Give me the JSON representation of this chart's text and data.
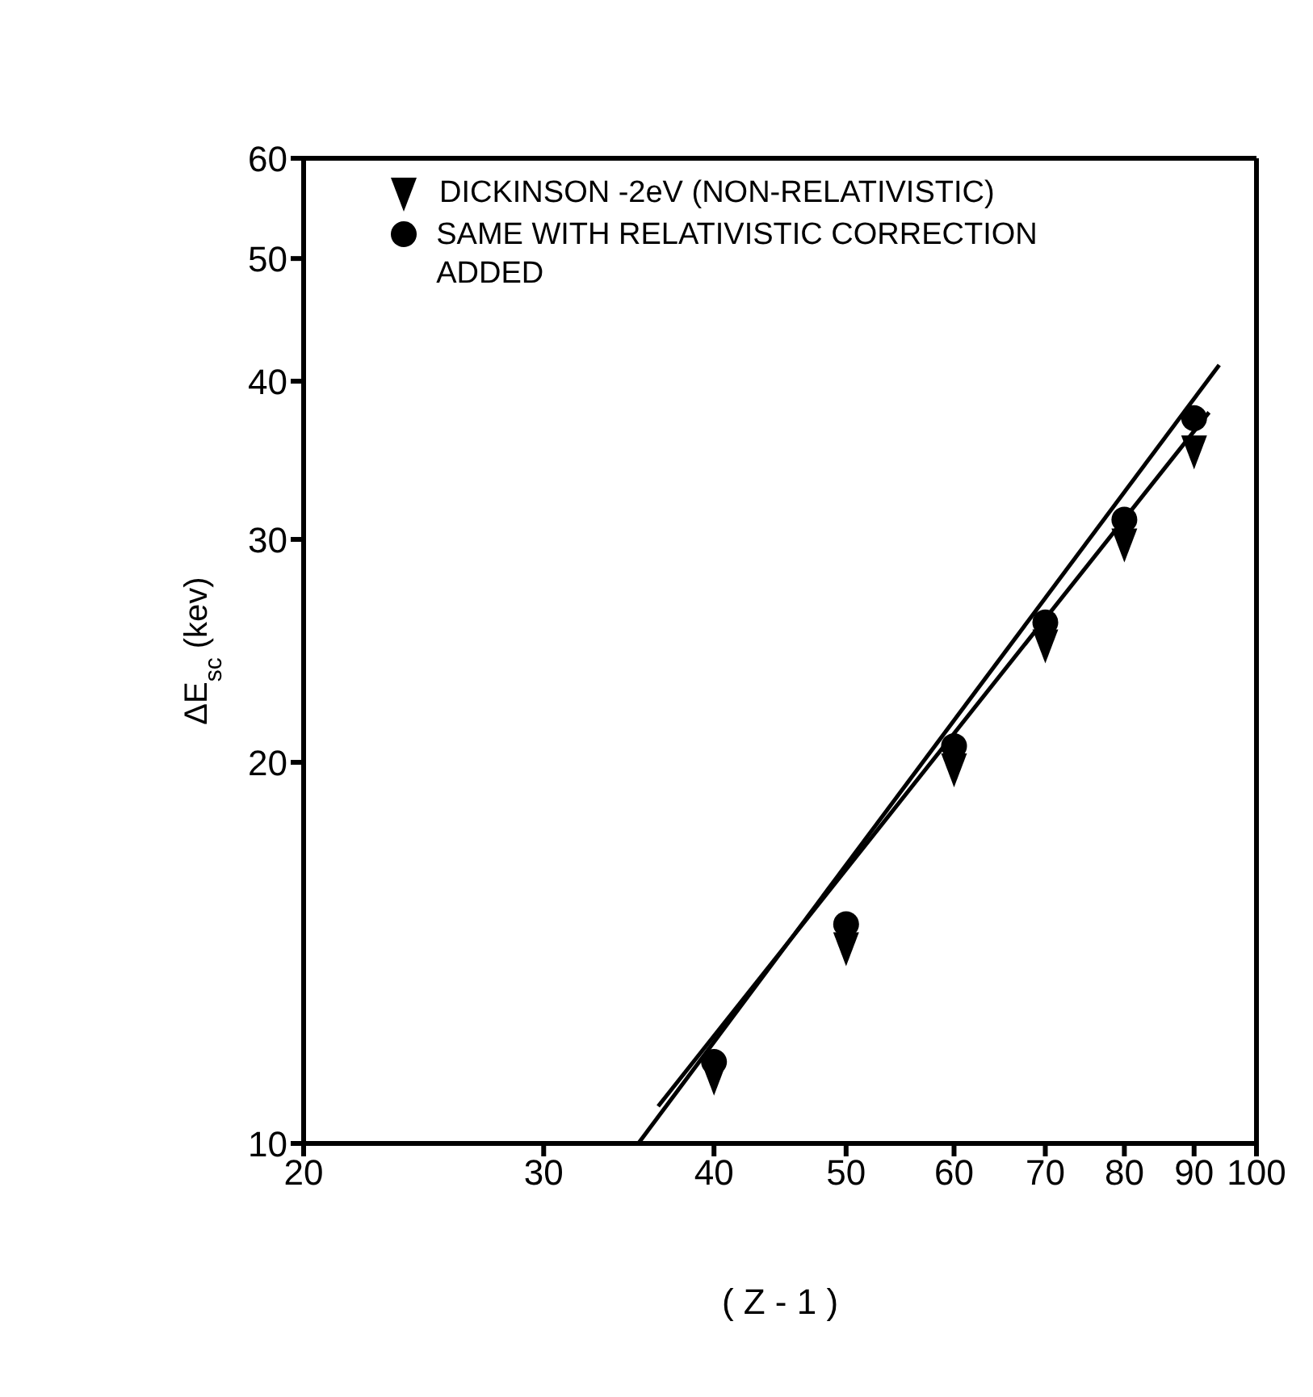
{
  "chart_data": {
    "type": "scatter",
    "xlabel": "( Z - 1 )",
    "ylabel": "ΔE$_{sc}$  (kev)",
    "log": "xy",
    "xlim": [
      20,
      100
    ],
    "ylim": [
      10,
      60
    ],
    "xticks": [
      20,
      30,
      40,
      50,
      60,
      70,
      80,
      90,
      100
    ],
    "yticks": [
      10,
      20,
      30,
      40,
      50,
      60
    ],
    "grid": false,
    "legend": "top left",
    "series": [
      {
        "name": "DICKINSON -2eV (NON-RELATIVISTIC)",
        "color": "#000000",
        "marker": "triangle",
        "x": [
          40,
          50,
          60,
          70,
          80,
          90
        ],
        "values": [
          11.3,
          14.3,
          19.8,
          24.8,
          29.8,
          35.3
        ]
      },
      {
        "name": "SAME WITH RELATIVISTIC CORRECTION ADDED",
        "color": "#000000",
        "marker": "circle",
        "x": [
          40,
          50,
          60,
          70,
          80,
          90
        ],
        "values": [
          11.6,
          14.9,
          20.6,
          25.8,
          31.1,
          37.4
        ]
      },
      {
        "type": "line",
        "color": "#000000",
        "marker": "none",
        "x": [
          36.4,
          92.3
        ],
        "values": [
          10.7,
          37.8
        ]
      },
      {
        "type": "line",
        "color": "#000000",
        "marker": "none",
        "x": [
          35.2,
          93.9
        ],
        "values": [
          10,
          41.2
        ]
      }
    ]
  }
}
